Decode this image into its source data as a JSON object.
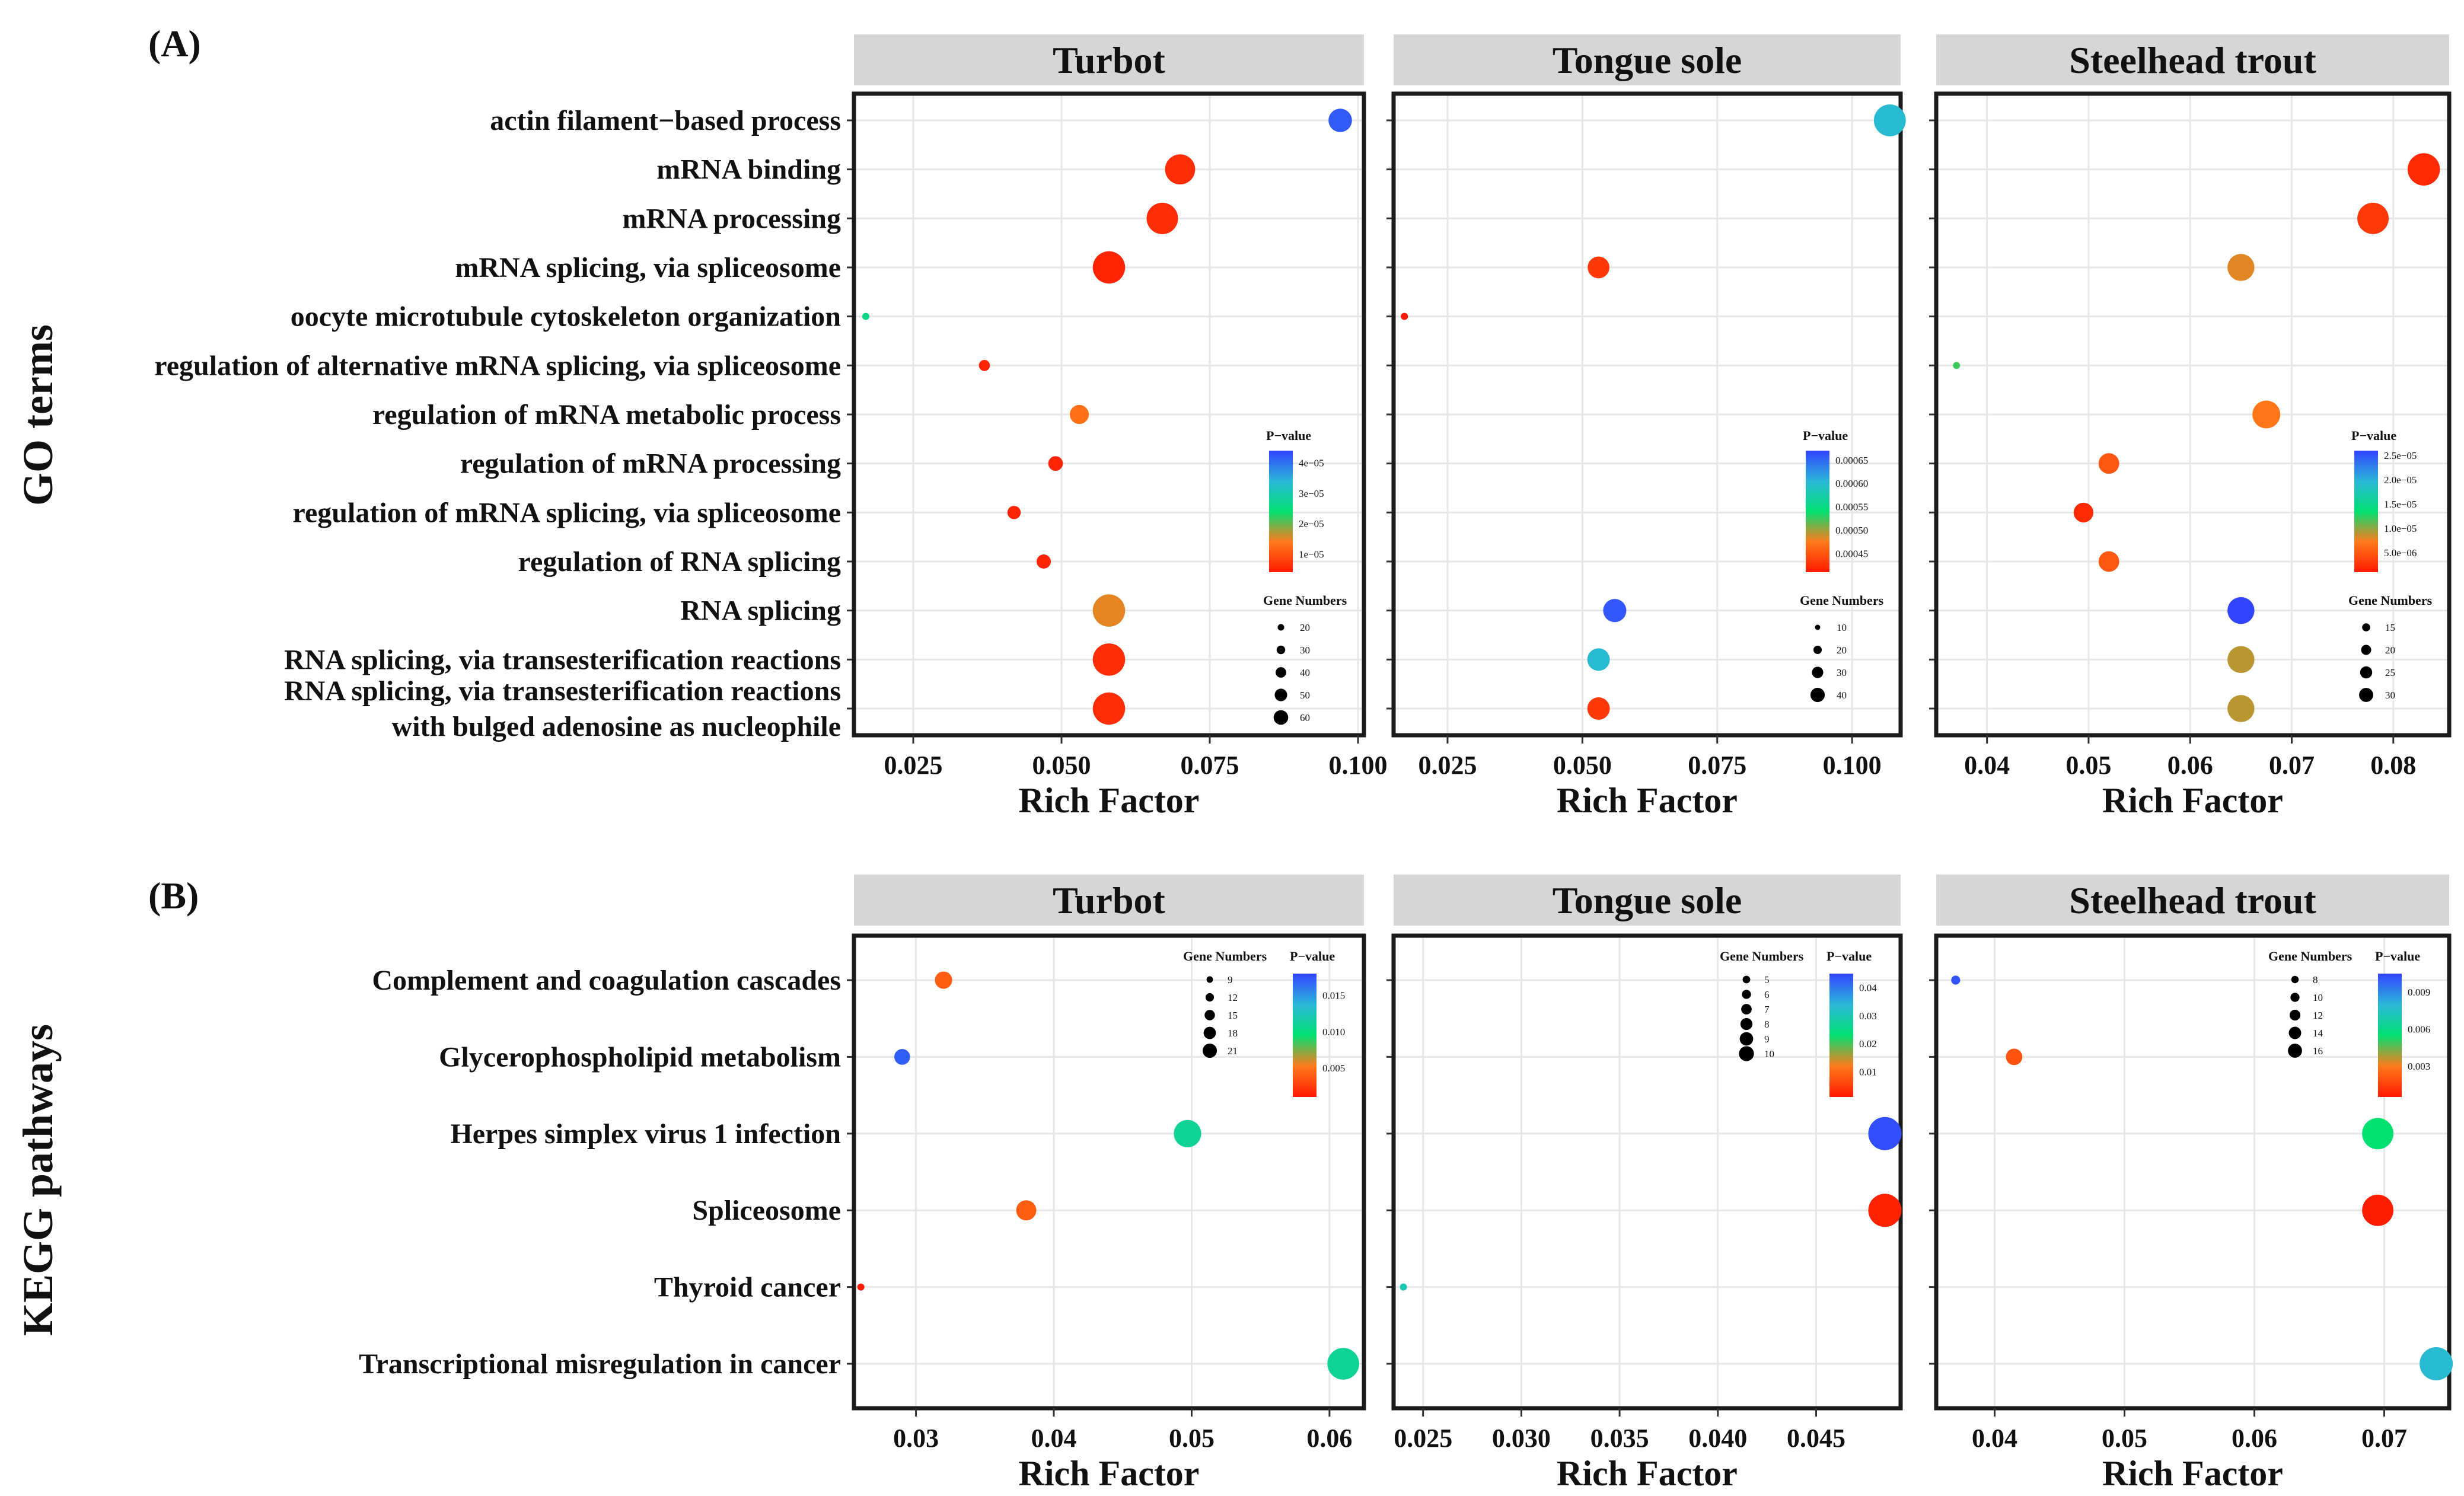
{
  "figure": {
    "panel_labels": [
      "(A)",
      "(B)"
    ],
    "row_titles": [
      "GO terms",
      "KEGG pathways"
    ]
  },
  "colors": {
    "strip_bg": "#d6d6d6",
    "grid": "#e7e7e7",
    "panel_border": "#1a1a1a",
    "pvalue_gradient": [
      "#ff1a00",
      "#ff7a1a",
      "#00e070",
      "#2ab7d9",
      "#3344ff"
    ]
  },
  "chart_data": [
    {
      "id": "go",
      "type": "scatter",
      "subtype": "bubble",
      "panel_label": "(A)",
      "ylabel": "GO terms",
      "xlabel": "Rich Factor",
      "size_legend_title": "Gene Numbers",
      "color_legend_title": "P−value",
      "categories": [
        "actin filament−based process",
        "mRNA binding",
        "mRNA processing",
        "mRNA splicing, via spliceosome",
        "oocyte microtubule cytoskeleton organization",
        "regulation of alternative mRNA splicing, via spliceosome",
        "regulation of mRNA metabolic process",
        "regulation of mRNA processing",
        "regulation of mRNA splicing, via spliceosome",
        "regulation of RNA splicing",
        "RNA splicing",
        "RNA splicing, via transesterification reactions",
        "RNA splicing, via transesterification reactions|with bulged adenosine as nucleophile"
      ],
      "facets": [
        {
          "name": "Turbot",
          "xlim": [
            0.015,
            0.101
          ],
          "xticks": [
            0.025,
            0.05,
            0.075,
            0.1
          ],
          "xtick_labels": [
            "0.025",
            "0.050",
            "0.075",
            "0.100"
          ],
          "color_ticks": [
            4e-05,
            3e-05,
            2e-05,
            1e-05
          ],
          "color_tick_labels": [
            "4e−05",
            "3e−05",
            "2e−05",
            "1e−05"
          ],
          "color_range": [
            4e-06,
            4.4e-05
          ],
          "size_ticks": [
            20,
            30,
            40,
            50,
            60
          ],
          "size_range": [
            3,
            62
          ],
          "points": [
            {
              "cat": 0,
              "x": 0.097,
              "genes": 40,
              "p": 4.2e-05
            },
            {
              "cat": 1,
              "x": 0.07,
              "genes": 55,
              "p": 6e-06
            },
            {
              "cat": 2,
              "x": 0.067,
              "genes": 58,
              "p": 6e-06
            },
            {
              "cat": 3,
              "x": 0.058,
              "genes": 60,
              "p": 5e-06
            },
            {
              "cat": 4,
              "x": 0.017,
              "genes": 3,
              "p": 2.6e-05
            },
            {
              "cat": 5,
              "x": 0.037,
              "genes": 12,
              "p": 5e-06
            },
            {
              "cat": 6,
              "x": 0.053,
              "genes": 30,
              "p": 1.3e-05
            },
            {
              "cat": 7,
              "x": 0.049,
              "genes": 20,
              "p": 5e-06
            },
            {
              "cat": 8,
              "x": 0.042,
              "genes": 17,
              "p": 5e-06
            },
            {
              "cat": 9,
              "x": 0.047,
              "genes": 19,
              "p": 5e-06
            },
            {
              "cat": 10,
              "x": 0.058,
              "genes": 60,
              "p": 1.5e-05
            },
            {
              "cat": 11,
              "x": 0.058,
              "genes": 60,
              "p": 6e-06
            },
            {
              "cat": 12,
              "x": 0.058,
              "genes": 60,
              "p": 6e-06
            }
          ]
        },
        {
          "name": "Tongue sole",
          "xlim": [
            0.015,
            0.109
          ],
          "xticks": [
            0.025,
            0.05,
            0.075,
            0.1
          ],
          "xtick_labels": [
            "0.025",
            "0.050",
            "0.075",
            "0.100"
          ],
          "color_ticks": [
            0.00065,
            0.0006,
            0.00055,
            0.0005,
            0.00045
          ],
          "color_tick_labels": [
            "0.00065",
            "0.00060",
            "0.00055",
            "0.00050",
            "0.00045"
          ],
          "color_range": [
            0.00041,
            0.00067
          ],
          "size_ticks": [
            10,
            20,
            30,
            40
          ],
          "size_range": [
            3,
            42
          ],
          "points": [
            {
              "cat": 0,
              "x": 0.107,
              "genes": 40,
              "p": 0.0006
            },
            {
              "cat": 3,
              "x": 0.053,
              "genes": 25,
              "p": 0.00043
            },
            {
              "cat": 4,
              "x": 0.017,
              "genes": 3,
              "p": 0.00041
            },
            {
              "cat": 10,
              "x": 0.056,
              "genes": 27,
              "p": 0.00066
            },
            {
              "cat": 11,
              "x": 0.053,
              "genes": 26,
              "p": 0.0006
            },
            {
              "cat": 12,
              "x": 0.053,
              "genes": 26,
              "p": 0.00043
            }
          ]
        },
        {
          "name": "Steelhead trout",
          "xlim": [
            0.035,
            0.0855
          ],
          "xticks": [
            0.04,
            0.05,
            0.06,
            0.07,
            0.08
          ],
          "xtick_labels": [
            "0.04",
            "0.05",
            "0.06",
            "0.07",
            "0.08"
          ],
          "color_ticks": [
            2.5e-05,
            2e-05,
            1.5e-05,
            1e-05,
            5e-06
          ],
          "color_tick_labels": [
            "2.5e−05",
            "2.0e−05",
            "1.5e−05",
            "1.0e−05",
            "5.0e−06"
          ],
          "color_range": [
            1e-06,
            2.6e-05
          ],
          "size_ticks": [
            15,
            20,
            25,
            30
          ],
          "size_range": [
            3,
            32
          ],
          "points": [
            {
              "cat": 1,
              "x": 0.083,
              "genes": 31,
              "p": 2e-06
            },
            {
              "cat": 2,
              "x": 0.078,
              "genes": 30,
              "p": 3e-06
            },
            {
              "cat": 3,
              "x": 0.065,
              "genes": 25,
              "p": 8e-06
            },
            {
              "cat": 5,
              "x": 0.037,
              "genes": 3,
              "p": 1.2e-05
            },
            {
              "cat": 6,
              "x": 0.0675,
              "genes": 26,
              "p": 7e-06
            },
            {
              "cat": 7,
              "x": 0.052,
              "genes": 18,
              "p": 5e-06
            },
            {
              "cat": 8,
              "x": 0.0495,
              "genes": 17,
              "p": 2e-06
            },
            {
              "cat": 9,
              "x": 0.052,
              "genes": 18,
              "p": 5e-06
            },
            {
              "cat": 10,
              "x": 0.065,
              "genes": 25,
              "p": 2.6e-05
            },
            {
              "cat": 11,
              "x": 0.065,
              "genes": 25,
              "p": 9e-06
            },
            {
              "cat": 12,
              "x": 0.065,
              "genes": 25,
              "p": 9e-06
            }
          ]
        }
      ]
    },
    {
      "id": "kegg",
      "type": "scatter",
      "subtype": "bubble",
      "panel_label": "(B)",
      "ylabel": "KEGG pathways",
      "xlabel": "Rich Factor",
      "size_legend_title": "Gene Numbers",
      "color_legend_title": "P−value",
      "categories": [
        "Complement and coagulation cascades",
        "Glycerophospholipid metabolism",
        "Herpes simplex virus 1 infection",
        "Spliceosome",
        "Thyroid cancer",
        "Transcriptional misregulation in cancer"
      ],
      "facets": [
        {
          "name": "Turbot",
          "xlim": [
            0.0255,
            0.0625
          ],
          "xticks": [
            0.03,
            0.04,
            0.05,
            0.06
          ],
          "xtick_labels": [
            "0.03",
            "0.04",
            "0.05",
            "0.06"
          ],
          "color_ticks": [
            0.015,
            0.01,
            0.005
          ],
          "color_tick_labels": [
            "0.015",
            "0.010",
            "0.005"
          ],
          "color_range": [
            0.001,
            0.018
          ],
          "size_ticks": [
            9,
            12,
            15,
            18,
            21
          ],
          "size_range": [
            4,
            22
          ],
          "points": [
            {
              "cat": 0,
              "x": 0.032,
              "genes": 11,
              "p": 0.004
            },
            {
              "cat": 1,
              "x": 0.029,
              "genes": 10,
              "p": 0.017
            },
            {
              "cat": 2,
              "x": 0.0497,
              "genes": 18,
              "p": 0.011
            },
            {
              "cat": 3,
              "x": 0.038,
              "genes": 13,
              "p": 0.004
            },
            {
              "cat": 4,
              "x": 0.026,
              "genes": 4,
              "p": 0.001
            },
            {
              "cat": 5,
              "x": 0.061,
              "genes": 21,
              "p": 0.011
            }
          ]
        },
        {
          "name": "Tongue sole",
          "xlim": [
            0.0235,
            0.0493
          ],
          "xticks": [
            0.025,
            0.03,
            0.035,
            0.04,
            0.045
          ],
          "xtick_labels": [
            "0.025",
            "0.030",
            "0.035",
            "0.040",
            "0.045"
          ],
          "color_ticks": [
            0.04,
            0.03,
            0.02,
            0.01
          ],
          "color_tick_labels": [
            "0.04",
            "0.03",
            "0.02",
            "0.01"
          ],
          "color_range": [
            0.001,
            0.045
          ],
          "size_ticks": [
            5,
            6,
            7,
            8,
            9,
            10
          ],
          "size_range": [
            2,
            10
          ],
          "points": [
            {
              "cat": 2,
              "x": 0.0485,
              "genes": 10,
              "p": 0.044
            },
            {
              "cat": 3,
              "x": 0.0485,
              "genes": 10,
              "p": 0.002
            },
            {
              "cat": 4,
              "x": 0.024,
              "genes": 2,
              "p": 0.03
            }
          ]
        },
        {
          "name": "Steelhead trout",
          "xlim": [
            0.0355,
            0.075
          ],
          "xticks": [
            0.04,
            0.05,
            0.06,
            0.07
          ],
          "xtick_labels": [
            "0.04",
            "0.05",
            "0.06",
            "0.07"
          ],
          "color_ticks": [
            0.009,
            0.006,
            0.003
          ],
          "color_tick_labels": [
            "0.009",
            "0.006",
            "0.003"
          ],
          "color_range": [
            0.0005,
            0.0105
          ],
          "size_ticks": [
            8,
            10,
            12,
            14,
            16
          ],
          "size_range": [
            3,
            17
          ],
          "points": [
            {
              "cat": 0,
              "x": 0.037,
              "genes": 4,
              "p": 0.0102
            },
            {
              "cat": 1,
              "x": 0.0415,
              "genes": 8,
              "p": 0.002
            },
            {
              "cat": 2,
              "x": 0.0695,
              "genes": 16,
              "p": 0.0055
            },
            {
              "cat": 3,
              "x": 0.0695,
              "genes": 16,
              "p": 0.0006
            },
            {
              "cat": 5,
              "x": 0.074,
              "genes": 17,
              "p": 0.0078
            }
          ]
        }
      ]
    }
  ]
}
